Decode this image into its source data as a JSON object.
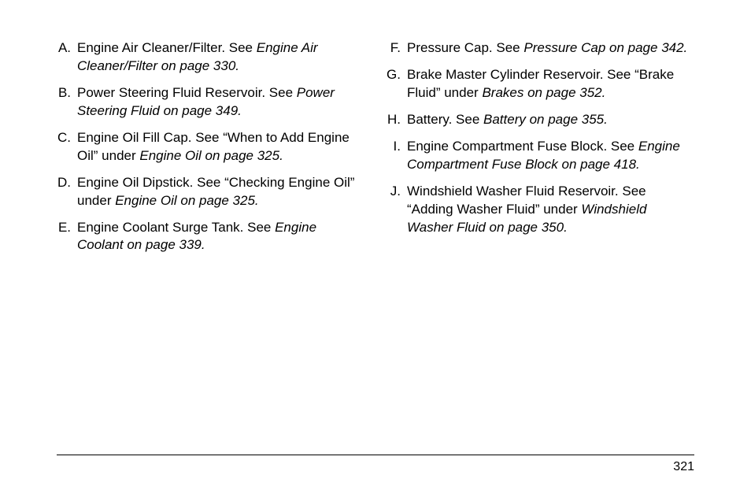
{
  "fontsize_body": 17,
  "fontsize_pagenum": 16,
  "text_color": "#000000",
  "background_color": "#ffffff",
  "line_color": "#000000",
  "page_number": "321",
  "left_column": [
    {
      "letter": "A.",
      "parts": [
        {
          "text": "Engine Air Cleaner/Filter. See ",
          "italic": false
        },
        {
          "text": "Engine Air Cleaner/Filter on page 330.",
          "italic": true
        }
      ]
    },
    {
      "letter": "B.",
      "parts": [
        {
          "text": "Power Steering Fluid Reservoir. See ",
          "italic": false
        },
        {
          "text": "Power Steering Fluid on page 349.",
          "italic": true
        }
      ]
    },
    {
      "letter": "C.",
      "parts": [
        {
          "text": "Engine Oil Fill Cap. See “When to Add Engine Oil” under ",
          "italic": false
        },
        {
          "text": "Engine Oil on page 325.",
          "italic": true
        }
      ]
    },
    {
      "letter": "D.",
      "parts": [
        {
          "text": "Engine Oil Dipstick. See “Checking Engine Oil” under ",
          "italic": false
        },
        {
          "text": "Engine Oil on page 325.",
          "italic": true
        }
      ]
    },
    {
      "letter": "E.",
      "parts": [
        {
          "text": "Engine Coolant Surge Tank. See ",
          "italic": false
        },
        {
          "text": "Engine Coolant on page 339.",
          "italic": true
        }
      ]
    }
  ],
  "right_column": [
    {
      "letter": "F.",
      "parts": [
        {
          "text": "Pressure Cap. See ",
          "italic": false
        },
        {
          "text": "Pressure Cap on page 342.",
          "italic": true
        }
      ]
    },
    {
      "letter": "G.",
      "parts": [
        {
          "text": "Brake Master Cylinder Reservoir. See “Brake Fluid” under ",
          "italic": false
        },
        {
          "text": "Brakes on page 352.",
          "italic": true
        }
      ]
    },
    {
      "letter": "H.",
      "parts": [
        {
          "text": "Battery. See ",
          "italic": false
        },
        {
          "text": "Battery on page 355.",
          "italic": true
        }
      ]
    },
    {
      "letter": "I.",
      "parts": [
        {
          "text": "Engine Compartment Fuse Block. See ",
          "italic": false
        },
        {
          "text": "Engine Compartment Fuse Block on page 418.",
          "italic": true
        }
      ]
    },
    {
      "letter": "J.",
      "parts": [
        {
          "text": "Windshield Washer Fluid Reservoir. See “Adding Washer Fluid” under ",
          "italic": false
        },
        {
          "text": "Windshield Washer Fluid on page 350.",
          "italic": true
        }
      ]
    }
  ]
}
